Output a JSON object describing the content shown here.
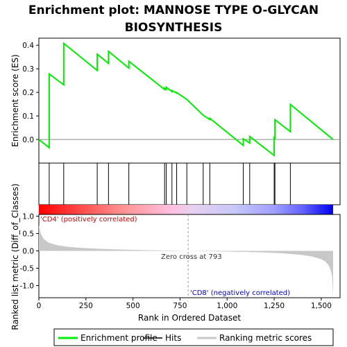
{
  "chart_data": {
    "type": "line",
    "title_line1": "Enrichment plot: MANNOSE TYPE O-GLYCAN",
    "title_line2": "BIOSYNTHESIS",
    "xlabel": "Rank in Ordered Dataset",
    "ylabel_top": "Enrichment score (ES)",
    "ylabel_bottom": "Ranked list metric (Diff_of_Classes)",
    "xlim": [
      0,
      1600
    ],
    "top_ylim": [
      -0.1,
      0.43
    ],
    "top_yticks": [
      "0.0",
      "0.1",
      "0.2",
      "0.3",
      "0.4"
    ],
    "top_ytick_values": [
      0.0,
      0.1,
      0.2,
      0.3,
      0.4
    ],
    "bottom_ylim": [
      -1.35,
      1.05
    ],
    "bottom_yticks": [
      "1.0",
      "0.5",
      "0.0",
      "-0.5",
      "-1.0"
    ],
    "bottom_ytick_values": [
      1.0,
      0.5,
      0.0,
      -0.5,
      -1.0
    ],
    "xticks": [
      "0",
      "250",
      "500",
      "750",
      "1,000",
      "1,250",
      "1,500"
    ],
    "xtick_values": [
      0,
      250,
      500,
      750,
      1000,
      1250,
      1500
    ],
    "total_ranks": 1563,
    "zero_cross_rank": 793,
    "zero_cross_label": "Zero cross at 793",
    "pos_label": "'CD4' (positively correlated)",
    "neg_label": "'CD8' (negatively correlated)",
    "hits": [
      55,
      132,
      310,
      370,
      478,
      668,
      677,
      707,
      732,
      786,
      873,
      908,
      1086,
      1120,
      1250,
      1254,
      1336
    ],
    "es_profile": {
      "x": [
        0,
        55,
        55,
        132,
        132,
        310,
        310,
        370,
        370,
        478,
        478,
        668,
        668,
        677,
        677,
        707,
        707,
        732,
        732,
        786,
        786,
        873,
        873,
        908,
        908,
        1086,
        1086,
        1120,
        1120,
        1250,
        1250,
        1254,
        1254,
        1336,
        1336,
        1563
      ],
      "y": [
        0.0,
        -0.035,
        0.278,
        0.232,
        0.408,
        0.293,
        0.362,
        0.323,
        0.374,
        0.303,
        0.332,
        0.212,
        0.218,
        0.212,
        0.222,
        0.203,
        0.208,
        0.197,
        0.199,
        0.17,
        0.17,
        0.103,
        0.103,
        0.085,
        0.09,
        -0.025,
        0.003,
        -0.015,
        0.013,
        -0.068,
        0.008,
        0.005,
        0.084,
        0.033,
        0.149,
        0.0
      ]
    },
    "metric_profile": {
      "x": [
        0,
        10,
        25,
        50,
        100,
        150,
        200,
        300,
        400,
        500,
        600,
        700,
        793,
        900,
        1000,
        1100,
        1200,
        1300,
        1400,
        1450,
        1500,
        1520,
        1540,
        1550,
        1558,
        1563
      ],
      "y": [
        0.75,
        0.5,
        0.35,
        0.24,
        0.16,
        0.12,
        0.095,
        0.065,
        0.045,
        0.03,
        0.02,
        0.01,
        0.0,
        -0.01,
        -0.02,
        -0.03,
        -0.045,
        -0.07,
        -0.12,
        -0.16,
        -0.24,
        -0.3,
        -0.42,
        -0.55,
        -0.75,
        -1.35
      ]
    },
    "colors": {
      "es_line": "#00ee00",
      "hit_line": "#000000",
      "metric_fill": "#c8c8c8",
      "pos_text": "#cc0000",
      "neg_text": "#0000cc",
      "frame": "#000000"
    },
    "legend": {
      "items": [
        "Enrichment profile",
        "Hits",
        "Ranking metric scores"
      ],
      "placement": "bottom"
    }
  }
}
